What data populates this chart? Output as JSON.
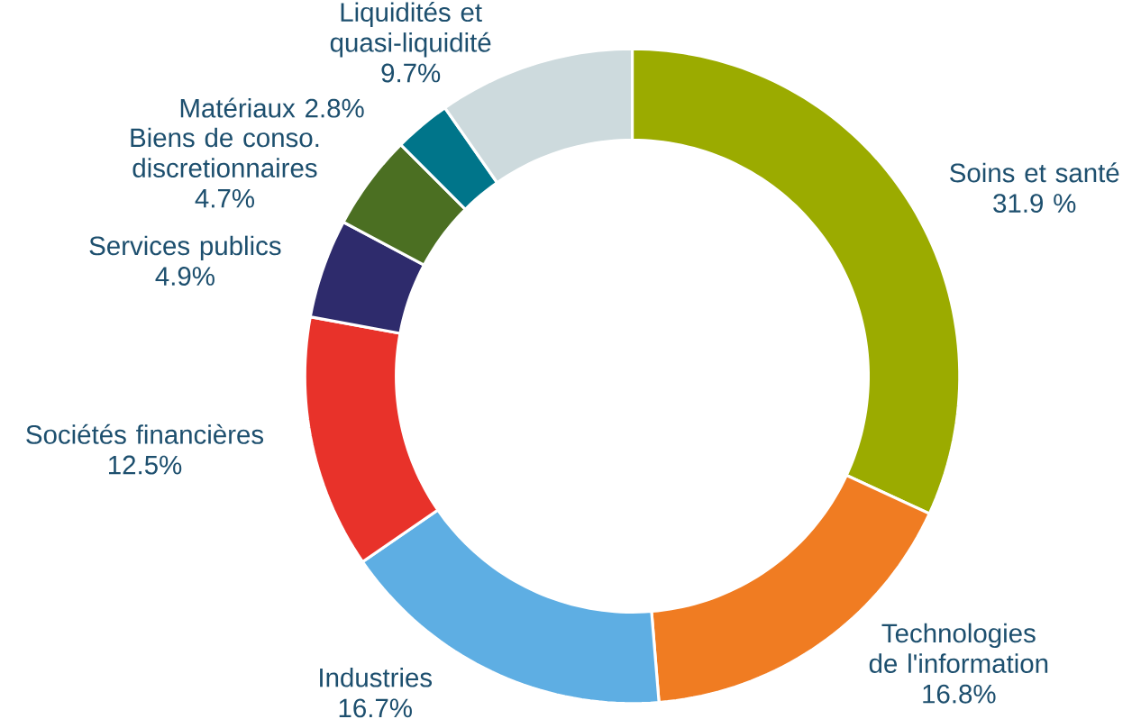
{
  "chart_data": {
    "type": "donut",
    "categories": [
      "Soins et santé",
      "Technologies de l'information",
      "Industries",
      "Sociétés financières",
      "Services publics",
      "Biens de conso. discretionnaires",
      "Matériaux",
      "Liquidités et quasi-liquidité"
    ],
    "values": [
      31.9,
      16.8,
      16.7,
      12.5,
      4.9,
      4.7,
      2.8,
      9.7
    ],
    "value_labels": [
      "31.9 %",
      "16.8%",
      "16.7%",
      "12.5%",
      "4.9%",
      "4.7%",
      "2.8%",
      "9.7%"
    ],
    "colors": [
      "#9bab00",
      "#f07c22",
      "#5eaee3",
      "#e8322a",
      "#2e2b6c",
      "#4b6f22",
      "#00758a",
      "#cddadd"
    ]
  }
}
